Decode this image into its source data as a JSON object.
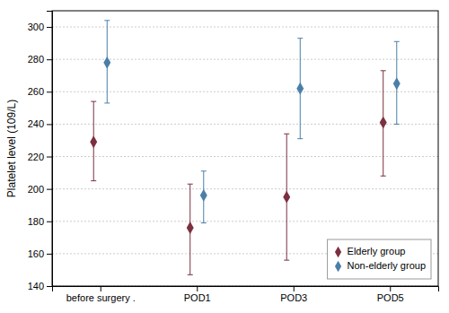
{
  "chart_data": {
    "type": "errorbar",
    "ylabel": "Platelet level (109/L)",
    "categories": [
      "before surgery .",
      "POD1",
      "POD3",
      "POD5"
    ],
    "series": [
      {
        "name": "Elderly group",
        "color": "#7B3040",
        "marker": "diamond",
        "values": [
          229,
          176,
          195,
          241
        ],
        "lower": [
          205,
          147,
          156,
          208
        ],
        "upper": [
          254,
          203,
          234,
          273
        ]
      },
      {
        "name": "Non-elderly group",
        "color": "#4A7FA8",
        "marker": "diamond",
        "values": [
          278,
          196,
          262,
          265
        ],
        "lower": [
          253,
          179,
          231,
          240
        ],
        "upper": [
          304,
          211,
          293,
          291
        ]
      }
    ],
    "ylim": [
      140,
      310
    ],
    "yticks": [
      140,
      160,
      180,
      200,
      220,
      240,
      260,
      280,
      300
    ],
    "grid": true,
    "legend": "lower right"
  }
}
